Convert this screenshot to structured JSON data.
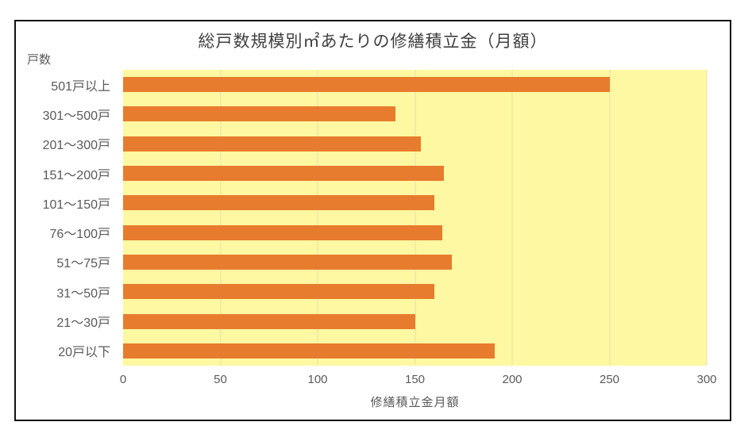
{
  "chart": {
    "title": "総戸数規模別㎡あたりの修繕積立金（月額）",
    "y_axis_title": "戸数",
    "x_axis_title": "修繕積立金月額",
    "colors": {
      "bar": "#E87C2E",
      "plot_background": "#FDF8A1",
      "gridline": "#E7E2AA",
      "label_text": "#595959",
      "title_text": "#3F3F3F",
      "frame_border": "#111111"
    }
  },
  "chart_data": {
    "type": "bar",
    "orientation": "horizontal",
    "title": "総戸数規模別㎡あたりの修繕積立金（月額）",
    "xlabel": "修繕積立金月額",
    "ylabel": "戸数",
    "categories": [
      "501戸以上",
      "301～500戸",
      "201～300戸",
      "151～200戸",
      "101～150戸",
      "76～100戸",
      "51～75戸",
      "31～50戸",
      "21～30戸",
      "20戸以下"
    ],
    "values": [
      250,
      140,
      153,
      165,
      160,
      164,
      169,
      160,
      150,
      191
    ],
    "xlim": [
      0,
      300
    ],
    "xticks": [
      0,
      50,
      100,
      150,
      200,
      250,
      300
    ],
    "grid": true,
    "legend": false
  }
}
